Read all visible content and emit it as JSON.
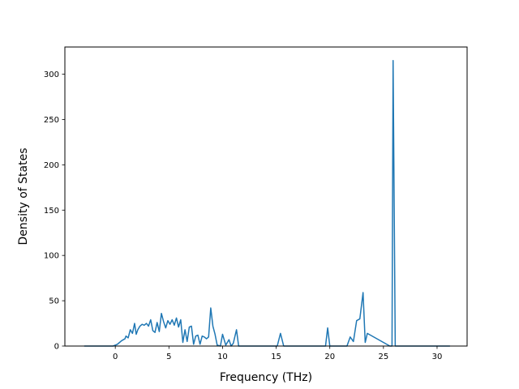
{
  "chart_data": {
    "type": "line",
    "title": "",
    "xlabel": "Frequency (THz)",
    "ylabel": "Density of States",
    "xlim": [
      -4.7,
      32.8
    ],
    "ylim": [
      0,
      330
    ],
    "xticks": [
      0,
      5,
      10,
      15,
      20,
      25,
      30
    ],
    "yticks": [
      0,
      50,
      100,
      150,
      200,
      250,
      300
    ],
    "grid": false,
    "legend": "none",
    "colors": {
      "line": "#1f77b4",
      "axes": "#000000",
      "background": "#ffffff"
    },
    "series": [
      {
        "x": [
          -2.9,
          -0.2,
          0.2,
          0.6,
          0.9,
          1.0,
          1.2,
          1.4,
          1.6,
          1.8,
          1.95,
          2.1,
          2.3,
          2.5,
          2.7,
          2.9,
          3.1,
          3.3,
          3.5,
          3.7,
          3.9,
          4.1,
          4.3,
          4.5,
          4.7,
          4.9,
          5.1,
          5.3,
          5.5,
          5.7,
          5.9,
          6.1,
          6.3,
          6.5,
          6.7,
          6.9,
          7.1,
          7.3,
          7.5,
          7.7,
          7.9,
          8.1,
          8.3,
          8.5,
          8.7,
          8.9,
          9.1,
          9.3,
          9.5,
          9.8,
          10.0,
          10.3,
          10.6,
          10.8,
          11.0,
          11.3,
          11.5,
          11.7,
          15.1,
          15.4,
          15.7,
          19.6,
          19.8,
          20.0,
          21.6,
          21.9,
          22.2,
          22.5,
          22.8,
          23.1,
          23.3,
          23.5,
          25.6,
          25.8,
          25.9,
          26.1,
          31.2
        ],
        "y": [
          0,
          0,
          2,
          6,
          8,
          11,
          9,
          18,
          14,
          25,
          13,
          18,
          22,
          24,
          23,
          25,
          22,
          29,
          17,
          15,
          26,
          16,
          36,
          27,
          20,
          28,
          24,
          29,
          23,
          31,
          21,
          29,
          4,
          18,
          5,
          21,
          22,
          2,
          11,
          12,
          2,
          11,
          10,
          8,
          10,
          42,
          22,
          13,
          1,
          0,
          13,
          1,
          7,
          0,
          3,
          18,
          0,
          0,
          0,
          14,
          0,
          0,
          20,
          0,
          0,
          10,
          5,
          28,
          30,
          59,
          4,
          14,
          0,
          0,
          315,
          0,
          0
        ]
      }
    ]
  }
}
